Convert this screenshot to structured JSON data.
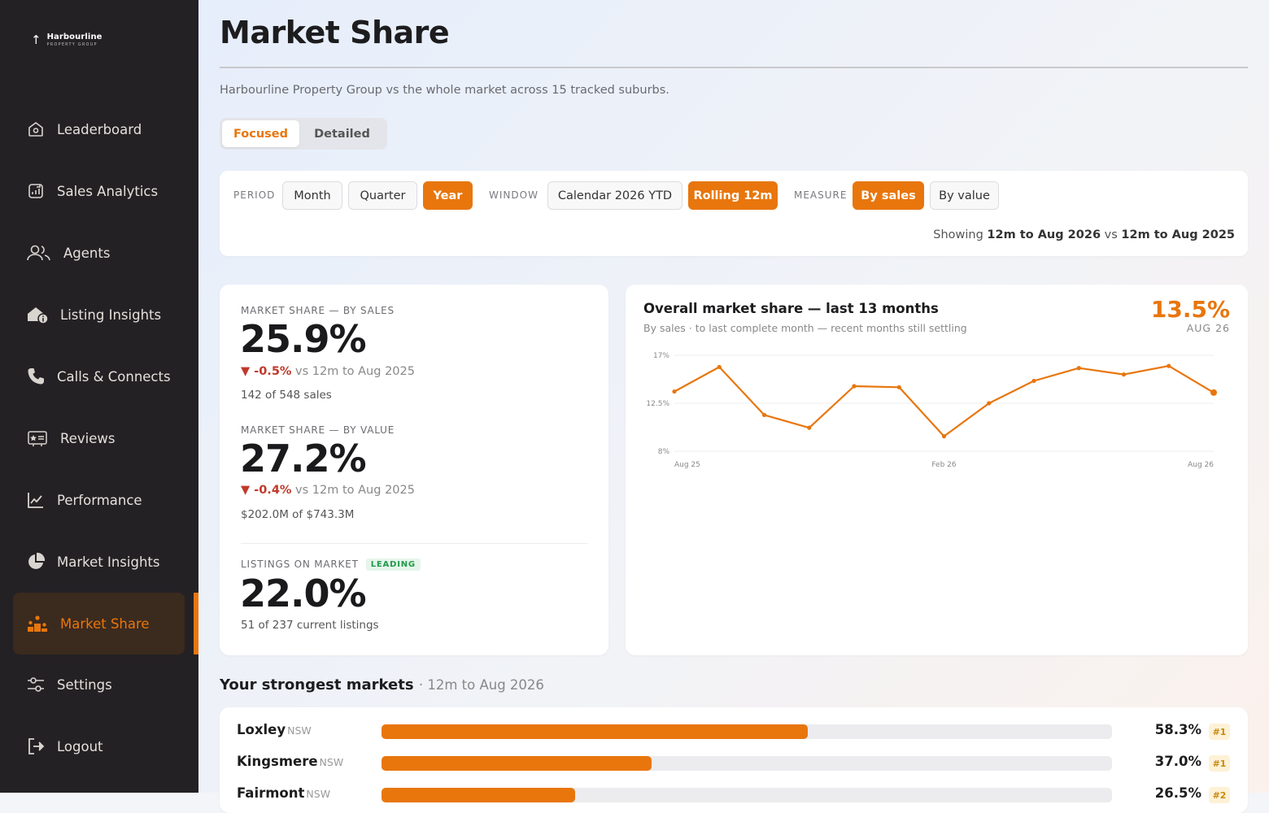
{
  "brand": {
    "name": "Harbourline",
    "tagline": "PROPERTY GROUP"
  },
  "sidebar": {
    "items": [
      {
        "label": "Leaderboard",
        "icon": "home-badge-icon"
      },
      {
        "label": "Sales Analytics",
        "icon": "chart-square-icon"
      },
      {
        "label": "Agents",
        "icon": "users-icon"
      },
      {
        "label": "Listing Insights",
        "icon": "house-info-icon"
      },
      {
        "label": "Calls & Connects",
        "icon": "phone-icon"
      },
      {
        "label": "Reviews",
        "icon": "review-card-icon"
      },
      {
        "label": "Performance",
        "icon": "line-chart-icon"
      },
      {
        "label": "Market Insights",
        "icon": "pie-chart-icon"
      },
      {
        "label": "Market Share",
        "icon": "podium-icon",
        "active": true
      },
      {
        "label": "Settings",
        "icon": "settings-sliders-icon"
      },
      {
        "label": "Logout",
        "icon": "logout-icon"
      }
    ]
  },
  "header": {
    "title": "Market Share",
    "subtitle": "Harbourline Property Group vs the whole market across 15 tracked suburbs."
  },
  "view_toggle": {
    "options": [
      "Focused",
      "Detailed"
    ],
    "selected": "Focused"
  },
  "filters": {
    "period": {
      "label": "PERIOD",
      "options": [
        "Month",
        "Quarter",
        "Year"
      ],
      "selected": "Year"
    },
    "window": {
      "label": "WINDOW",
      "options": [
        "Calendar 2026 YTD",
        "Rolling 12m"
      ],
      "selected": "Rolling 12m"
    },
    "measure": {
      "label": "MEASURE",
      "options": [
        "By sales",
        "By value"
      ],
      "selected": "By sales"
    },
    "showing": {
      "prefix": "Showing",
      "current": "12m to Aug 2026",
      "vs": "vs",
      "previous": "12m to Aug 2025"
    }
  },
  "kpis": {
    "by_sales": {
      "label": "MARKET SHARE — BY SALES",
      "value": "25.9%",
      "delta": "▼ -0.5%",
      "delta_suffix": "vs 12m to Aug 2025",
      "sub": "142 of 548 sales"
    },
    "by_value": {
      "label": "MARKET SHARE — BY VALUE",
      "value": "27.2%",
      "delta": "▼ -0.4%",
      "delta_suffix": "vs 12m to Aug 2025",
      "sub": "$202.0M of $743.3M"
    },
    "listings": {
      "label": "LISTINGS ON MARKET",
      "badge": "LEADING",
      "value": "22.0%",
      "sub": "51 of 237 current listings"
    }
  },
  "overall_chart": {
    "title": "Overall market share — last 13 months",
    "subtitle": "By sales · to last complete month — recent months still settling",
    "current_value": "13.5%",
    "current_month": "AUG 26"
  },
  "chart_data": {
    "type": "line",
    "x": [
      "Aug 25",
      "Sep 25",
      "Oct 25",
      "Nov 25",
      "Dec 25",
      "Jan 26",
      "Feb 26",
      "Mar 26",
      "Apr 26",
      "May 26",
      "Jun 26",
      "Jul 26",
      "Aug 26"
    ],
    "series": [
      {
        "values": [
          13.6,
          15.9,
          11.4,
          10.2,
          14.1,
          14.0,
          9.4,
          12.5,
          14.6,
          15.8,
          15.2,
          16.0,
          13.5
        ]
      }
    ],
    "y_ticks": [
      "17%",
      "12.5%",
      "8%"
    ],
    "x_tick_labels": [
      "Aug 25",
      "Feb 26",
      "Aug 26"
    ],
    "ylim": [
      8,
      17
    ],
    "grid": true,
    "color": "#e8760d"
  },
  "strongest": {
    "title": "Your strongest markets",
    "period": "· 12m to Aug 2026",
    "rows": [
      {
        "name": "Loxley",
        "state": "NSW",
        "share": 58.3,
        "value": "58.3%",
        "rank": "#1"
      },
      {
        "name": "Kingsmere",
        "state": "NSW",
        "share": 37.0,
        "value": "37.0%",
        "rank": "#1"
      },
      {
        "name": "Fairmont",
        "state": "NSW",
        "share": 26.5,
        "value": "26.5%",
        "rank": "#2"
      }
    ]
  },
  "colors": {
    "accent": "#e8760d",
    "sidebar_bg": "#242124",
    "negative": "#c0392b",
    "positive": "#1f9a4a"
  }
}
